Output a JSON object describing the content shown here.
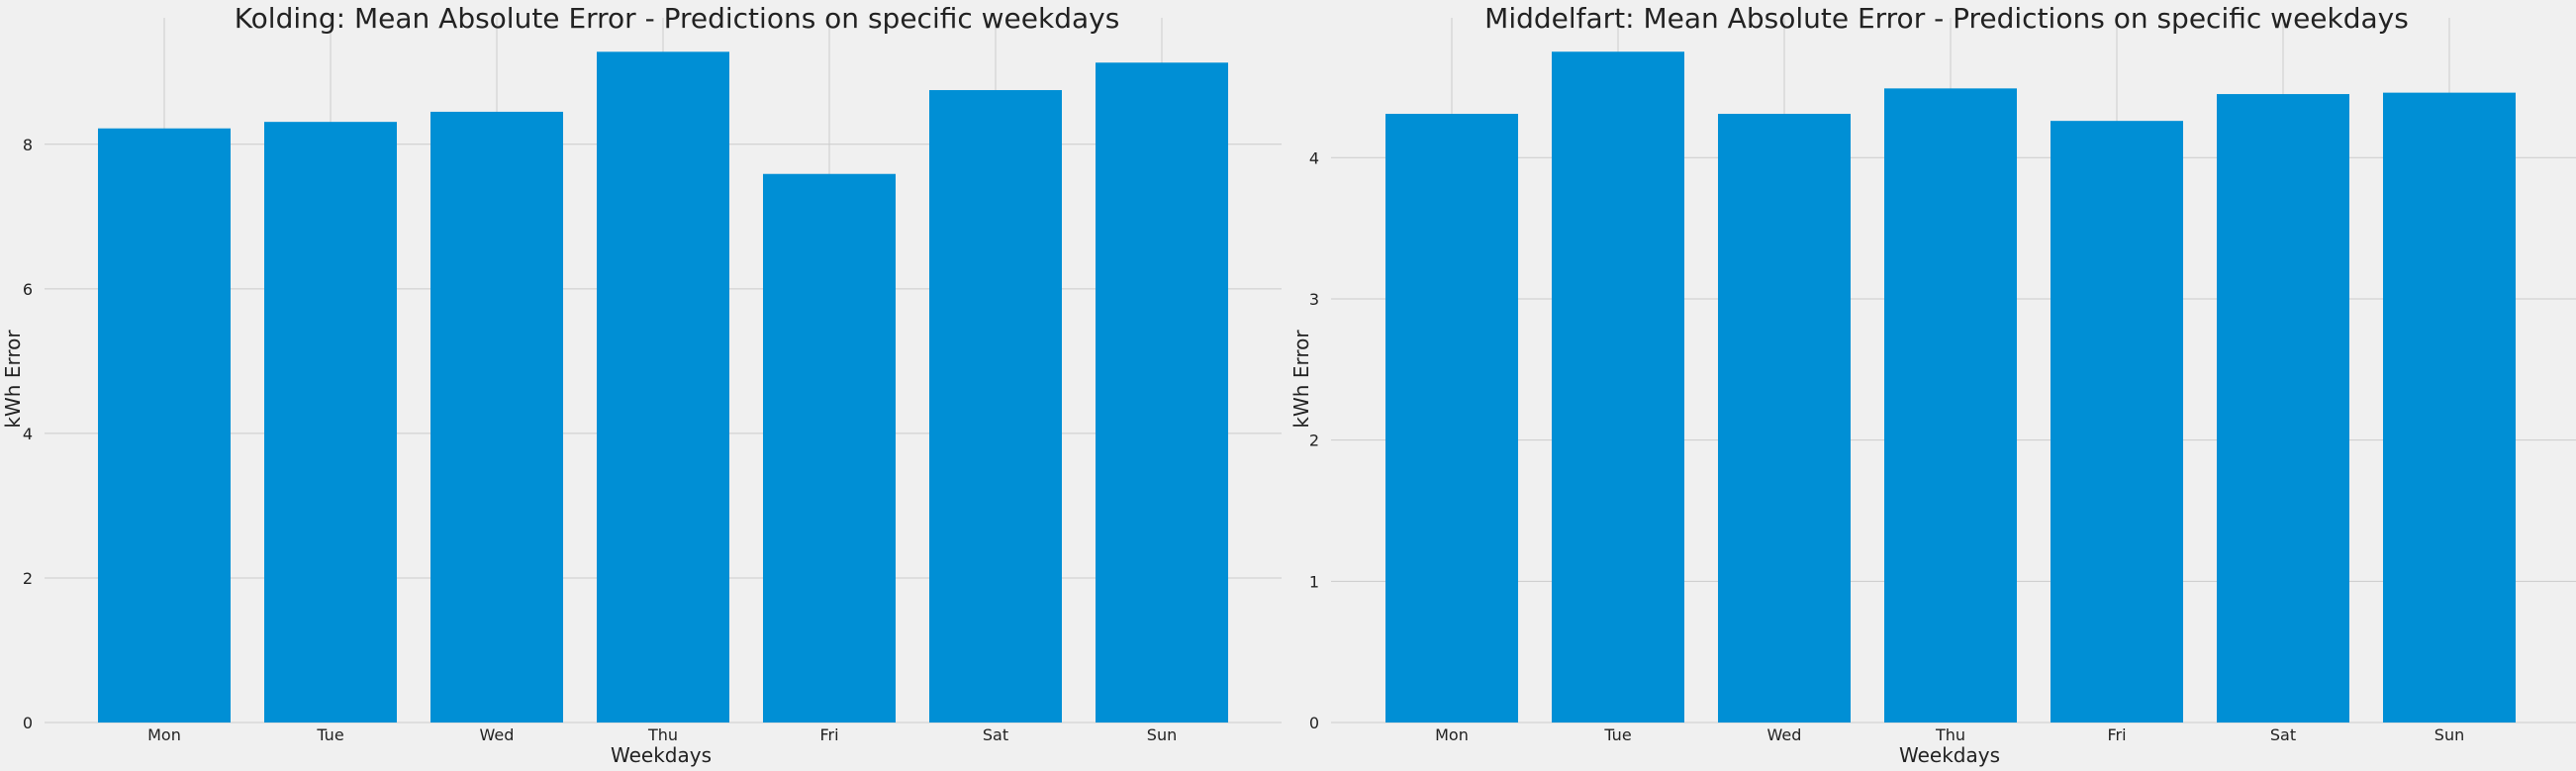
{
  "chart_data": [
    {
      "type": "bar",
      "title": "Kolding: Mean Absolute Error - Predictions on specific weekdays",
      "xlabel": "Weekdays",
      "ylabel": "kWh Error",
      "categories": [
        "Mon",
        "Tue",
        "Wed",
        "Thu",
        "Fri",
        "Sat",
        "Sun"
      ],
      "values": [
        8.22,
        8.31,
        8.45,
        9.28,
        7.59,
        8.75,
        9.13
      ],
      "ylim": [
        0,
        9.75
      ],
      "yticks": [
        0,
        2,
        4,
        6,
        8
      ],
      "grid": true,
      "bar_color": "#008fd5"
    },
    {
      "type": "bar",
      "title": "Middelfart: Mean Absolute Error - Predictions on specific weekdays",
      "xlabel": "Weekdays",
      "ylabel": "kWh Error",
      "categories": [
        "Mon",
        "Tue",
        "Wed",
        "Thu",
        "Fri",
        "Sat",
        "Sun"
      ],
      "values": [
        4.31,
        4.75,
        4.31,
        4.49,
        4.26,
        4.45,
        4.46
      ],
      "ylim": [
        0,
        4.99
      ],
      "yticks": [
        0,
        1,
        2,
        3,
        4
      ],
      "grid": true,
      "bar_color": "#008fd5"
    }
  ]
}
